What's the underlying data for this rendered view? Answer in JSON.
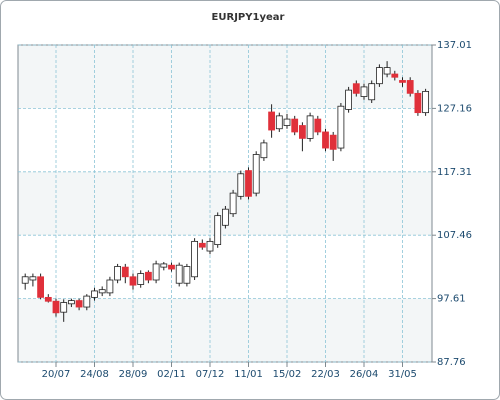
{
  "chart_data": {
    "type": "candlestick",
    "title": "EURJPY1year",
    "categories": [
      null,
      null,
      null,
      null,
      "20/07",
      null,
      null,
      null,
      null,
      "24/08",
      null,
      null,
      null,
      null,
      "28/09",
      null,
      null,
      null,
      null,
      "02/11",
      null,
      null,
      null,
      null,
      "07/12",
      null,
      null,
      null,
      null,
      "11/01",
      null,
      null,
      null,
      null,
      "15/02",
      null,
      null,
      null,
      null,
      "22/03",
      null,
      null,
      null,
      null,
      "26/04",
      null,
      null,
      null,
      null,
      "31/05",
      null,
      null,
      null
    ],
    "open": [
      100.0,
      100.5,
      101.0,
      97.8,
      97.2,
      95.5,
      96.8,
      97.3,
      96.3,
      97.8,
      98.5,
      98.5,
      100.5,
      102.5,
      101.0,
      99.8,
      101.7,
      100.5,
      102.5,
      102.8,
      100.0,
      100.0,
      101.0,
      106.2,
      105.0,
      106.0,
      109.0,
      110.8,
      113.5,
      117.5,
      114.0,
      119.5,
      126.6,
      124.0,
      124.5,
      125.5,
      124.5,
      122.5,
      125.5,
      123.5,
      123.0,
      121.0,
      127.0,
      131.0,
      129.0,
      128.5,
      131.0,
      132.5,
      132.5,
      131.5,
      131.5,
      129.5,
      126.5
    ],
    "high": [
      101.5,
      101.5,
      101.5,
      98.3,
      97.6,
      97.5,
      97.6,
      97.6,
      98.3,
      99.3,
      99.5,
      101.0,
      103.0,
      103.0,
      101.5,
      102.0,
      102.0,
      103.5,
      103.3,
      103.2,
      103.2,
      103.0,
      107.0,
      106.8,
      107.0,
      111.0,
      112.0,
      114.5,
      117.5,
      118.0,
      120.5,
      122.3,
      127.8,
      126.5,
      126.3,
      126.0,
      125.0,
      126.5,
      126.0,
      124.0,
      123.5,
      128.0,
      130.5,
      131.5,
      131.0,
      131.5,
      134.0,
      134.5,
      133.0,
      132.0,
      132.0,
      130.0,
      130.2
    ],
    "low": [
      99.0,
      99.5,
      97.5,
      97.0,
      94.8,
      94.0,
      96.3,
      95.8,
      95.8,
      97.3,
      98.0,
      98.0,
      100.0,
      100.0,
      99.0,
      99.3,
      100.0,
      100.0,
      102.0,
      101.8,
      99.5,
      99.5,
      100.5,
      105.2,
      104.5,
      105.5,
      108.5,
      110.3,
      113.0,
      113.0,
      113.5,
      119.0,
      122.6,
      123.5,
      124.0,
      123.0,
      120.5,
      122.0,
      123.0,
      120.5,
      119.0,
      120.5,
      126.5,
      129.0,
      128.5,
      128.0,
      130.5,
      132.0,
      131.5,
      130.5,
      129.0,
      126.0,
      126.0
    ],
    "close": [
      101.0,
      101.0,
      97.8,
      97.2,
      95.4,
      97.0,
      97.3,
      96.3,
      98.0,
      98.8,
      99.0,
      100.5,
      102.6,
      101.0,
      99.7,
      101.5,
      100.5,
      103.0,
      103.0,
      102.2,
      102.8,
      102.6,
      106.5,
      105.6,
      106.5,
      110.5,
      111.5,
      114.0,
      117.0,
      113.5,
      120.0,
      121.8,
      123.8,
      126.0,
      125.5,
      123.5,
      122.5,
      126.0,
      123.5,
      121.0,
      120.8,
      127.5,
      130.0,
      129.5,
      130.5,
      131.0,
      133.5,
      133.5,
      132.0,
      131.2,
      129.5,
      126.5,
      129.8
    ],
    "up_color": "#ffffff",
    "down_color": "#e0303a",
    "ylim": [
      87.76,
      137.01
    ],
    "yticks": [
      87.76,
      97.61,
      107.46,
      117.31,
      127.16,
      137.01
    ],
    "grid": true
  }
}
